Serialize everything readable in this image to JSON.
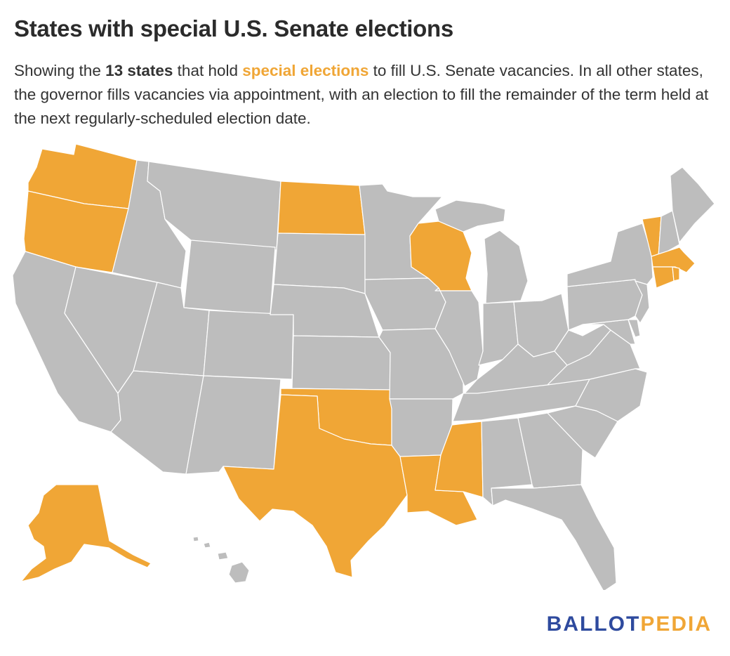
{
  "title": "States with special U.S. Senate elections",
  "subtitle": {
    "before": "Showing the ",
    "count": "13 states",
    "middle": " that hold ",
    "highlight": "special elections",
    "after": " to fill U.S. Senate vacancies. In all other states, the governor fills vacancies via appointment, with an election to fill the remainder of the term held at the next regularly-scheduled election date."
  },
  "colors": {
    "special": "#f0a636",
    "other": "#bdbdbd",
    "border": "#ffffff",
    "logo_primary": "#2e4a9e",
    "logo_secondary": "#f0a636"
  },
  "legend": {
    "special": "special elections"
  },
  "special_states": [
    "WA",
    "OR",
    "ND",
    "WI",
    "OK",
    "TX",
    "LA",
    "MS",
    "AK",
    "VT",
    "MA",
    "RI",
    "CT"
  ],
  "logo": {
    "part1": "BALLOT",
    "part2": "PEDIA"
  }
}
